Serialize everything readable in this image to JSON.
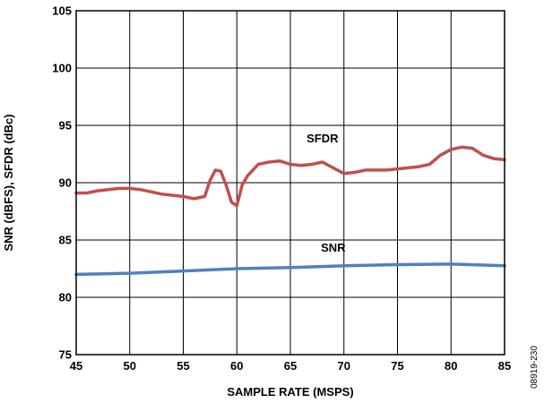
{
  "chart_data": {
    "type": "line",
    "xlabel": "SAMPLE RATE (MSPS)",
    "ylabel": "SNR (dBFS), SFDR (dBc)",
    "xlim": [
      45,
      85
    ],
    "ylim": [
      75,
      105
    ],
    "xticks": [
      45,
      50,
      55,
      60,
      65,
      70,
      75,
      80,
      85
    ],
    "yticks": [
      75,
      80,
      85,
      90,
      95,
      100,
      105
    ],
    "grid": true,
    "legend": "none",
    "figure_id": "08919-230",
    "series": [
      {
        "name": "SFDR",
        "color": "#c0504d",
        "x": [
          45,
          46,
          47,
          48,
          49,
          50,
          51,
          52,
          53,
          54,
          55,
          56,
          57,
          57.5,
          58,
          58.5,
          59,
          59.5,
          60,
          60.5,
          61,
          62,
          63,
          64,
          65,
          66,
          67,
          68,
          69,
          70,
          71,
          72,
          73,
          74,
          75,
          76,
          77,
          78,
          79,
          80,
          81,
          82,
          83,
          84,
          85
        ],
        "values": [
          89.1,
          89.1,
          89.3,
          89.4,
          89.5,
          89.5,
          89.4,
          89.2,
          89.0,
          88.9,
          88.8,
          88.6,
          88.8,
          90.2,
          91.1,
          91.0,
          89.8,
          88.3,
          88.0,
          89.8,
          90.6,
          91.6,
          91.8,
          91.9,
          91.6,
          91.5,
          91.6,
          91.8,
          91.3,
          90.8,
          90.9,
          91.1,
          91.1,
          91.1,
          91.2,
          91.3,
          91.4,
          91.6,
          92.4,
          92.9,
          93.1,
          93.0,
          92.4,
          92.1,
          92.0
        ]
      },
      {
        "name": "SNR",
        "color": "#4f81bd",
        "x": [
          45,
          50,
          55,
          60,
          65,
          70,
          75,
          80,
          85
        ],
        "values": [
          82.0,
          82.1,
          82.3,
          82.5,
          82.6,
          82.75,
          82.85,
          82.9,
          82.75
        ]
      }
    ]
  }
}
